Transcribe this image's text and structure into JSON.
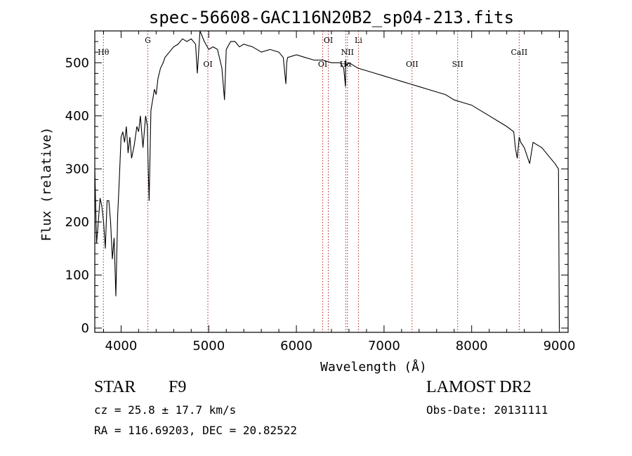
{
  "chart_data": {
    "type": "line",
    "title": "spec-56608-GAC116N20B2_sp04-213.fits",
    "xlabel": "Wavelength (Å)",
    "ylabel": "Flux (relative)",
    "xlim": [
      3700,
      9100
    ],
    "ylim": [
      -8,
      560
    ],
    "xticks": [
      4000,
      5000,
      6000,
      7000,
      8000,
      9000
    ],
    "yticks": [
      0,
      100,
      200,
      300,
      400,
      500
    ],
    "series": [
      {
        "name": "flux",
        "x": [
          3700,
          3720,
          3740,
          3760,
          3780,
          3800,
          3820,
          3840,
          3860,
          3880,
          3900,
          3920,
          3940,
          3960,
          3980,
          4000,
          4020,
          4040,
          4060,
          4080,
          4100,
          4120,
          4150,
          4180,
          4200,
          4220,
          4250,
          4280,
          4300,
          4310,
          4320,
          4340,
          4360,
          4380,
          4400,
          4420,
          4450,
          4480,
          4500,
          4550,
          4600,
          4650,
          4700,
          4750,
          4800,
          4850,
          4870,
          4900,
          4950,
          5000,
          5050,
          5100,
          5150,
          5180,
          5200,
          5250,
          5300,
          5350,
          5400,
          5500,
          5600,
          5700,
          5800,
          5850,
          5880,
          5890,
          5900,
          6000,
          6100,
          6200,
          6300,
          6400,
          6500,
          6540,
          6560,
          6563,
          6570,
          6600,
          6700,
          6800,
          6900,
          7000,
          7100,
          7200,
          7300,
          7400,
          7500,
          7600,
          7700,
          7800,
          7900,
          8000,
          8100,
          8200,
          8300,
          8400,
          8480,
          8498,
          8520,
          8542,
          8560,
          8600,
          8662,
          8700,
          8800,
          8850,
          8900,
          8950,
          8990,
          9000
        ],
        "y": [
          300,
          160,
          200,
          245,
          230,
          200,
          150,
          240,
          240,
          200,
          130,
          170,
          60,
          210,
          280,
          360,
          370,
          350,
          380,
          330,
          360,
          320,
          345,
          380,
          370,
          400,
          340,
          400,
          380,
          300,
          240,
          410,
          430,
          450,
          440,
          470,
          490,
          500,
          510,
          520,
          530,
          535,
          545,
          540,
          545,
          535,
          480,
          560,
          540,
          525,
          530,
          525,
          490,
          430,
          525,
          540,
          540,
          530,
          535,
          530,
          520,
          525,
          520,
          510,
          460,
          500,
          510,
          515,
          510,
          505,
          505,
          500,
          500,
          490,
          455,
          505,
          495,
          500,
          490,
          485,
          480,
          475,
          470,
          465,
          460,
          455,
          450,
          445,
          440,
          430,
          425,
          420,
          410,
          400,
          390,
          380,
          370,
          340,
          320,
          360,
          350,
          340,
          310,
          350,
          340,
          330,
          320,
          310,
          300,
          0
        ]
      }
    ],
    "line_annotations": [
      {
        "label": "Hθ",
        "x": 3798,
        "row": "upper"
      },
      {
        "label": "G",
        "x": 4305,
        "row": "top"
      },
      {
        "label": "OI",
        "x": 4990,
        "row": "lower"
      },
      {
        "label": "OI",
        "x": 6300,
        "row": "lower"
      },
      {
        "label": "OI",
        "x": 6364,
        "row": "top"
      },
      {
        "label": "NII",
        "x": 6583,
        "row": "upper"
      },
      {
        "label": "Hα",
        "x": 6563,
        "row": "lower"
      },
      {
        "label": "Li",
        "x": 6708,
        "row": "top"
      },
      {
        "label": "OII",
        "x": 7320,
        "row": "lower"
      },
      {
        "label": "SII",
        "x": 7840,
        "row": "lower"
      },
      {
        "label": "CaII",
        "x": 8542,
        "row": "upper"
      }
    ]
  },
  "object_class": "STAR",
  "subclass": "F9",
  "survey": "LAMOST DR2",
  "redshift_text": "cz = 25.8 ± 17.7 km/s",
  "obs_date": "Obs-Date: 20131111",
  "coords": "RA = 116.69203, DEC =  20.82522",
  "colors": {
    "spectrum": "#000000",
    "line_marker": "#b22222",
    "axis": "#000000"
  }
}
